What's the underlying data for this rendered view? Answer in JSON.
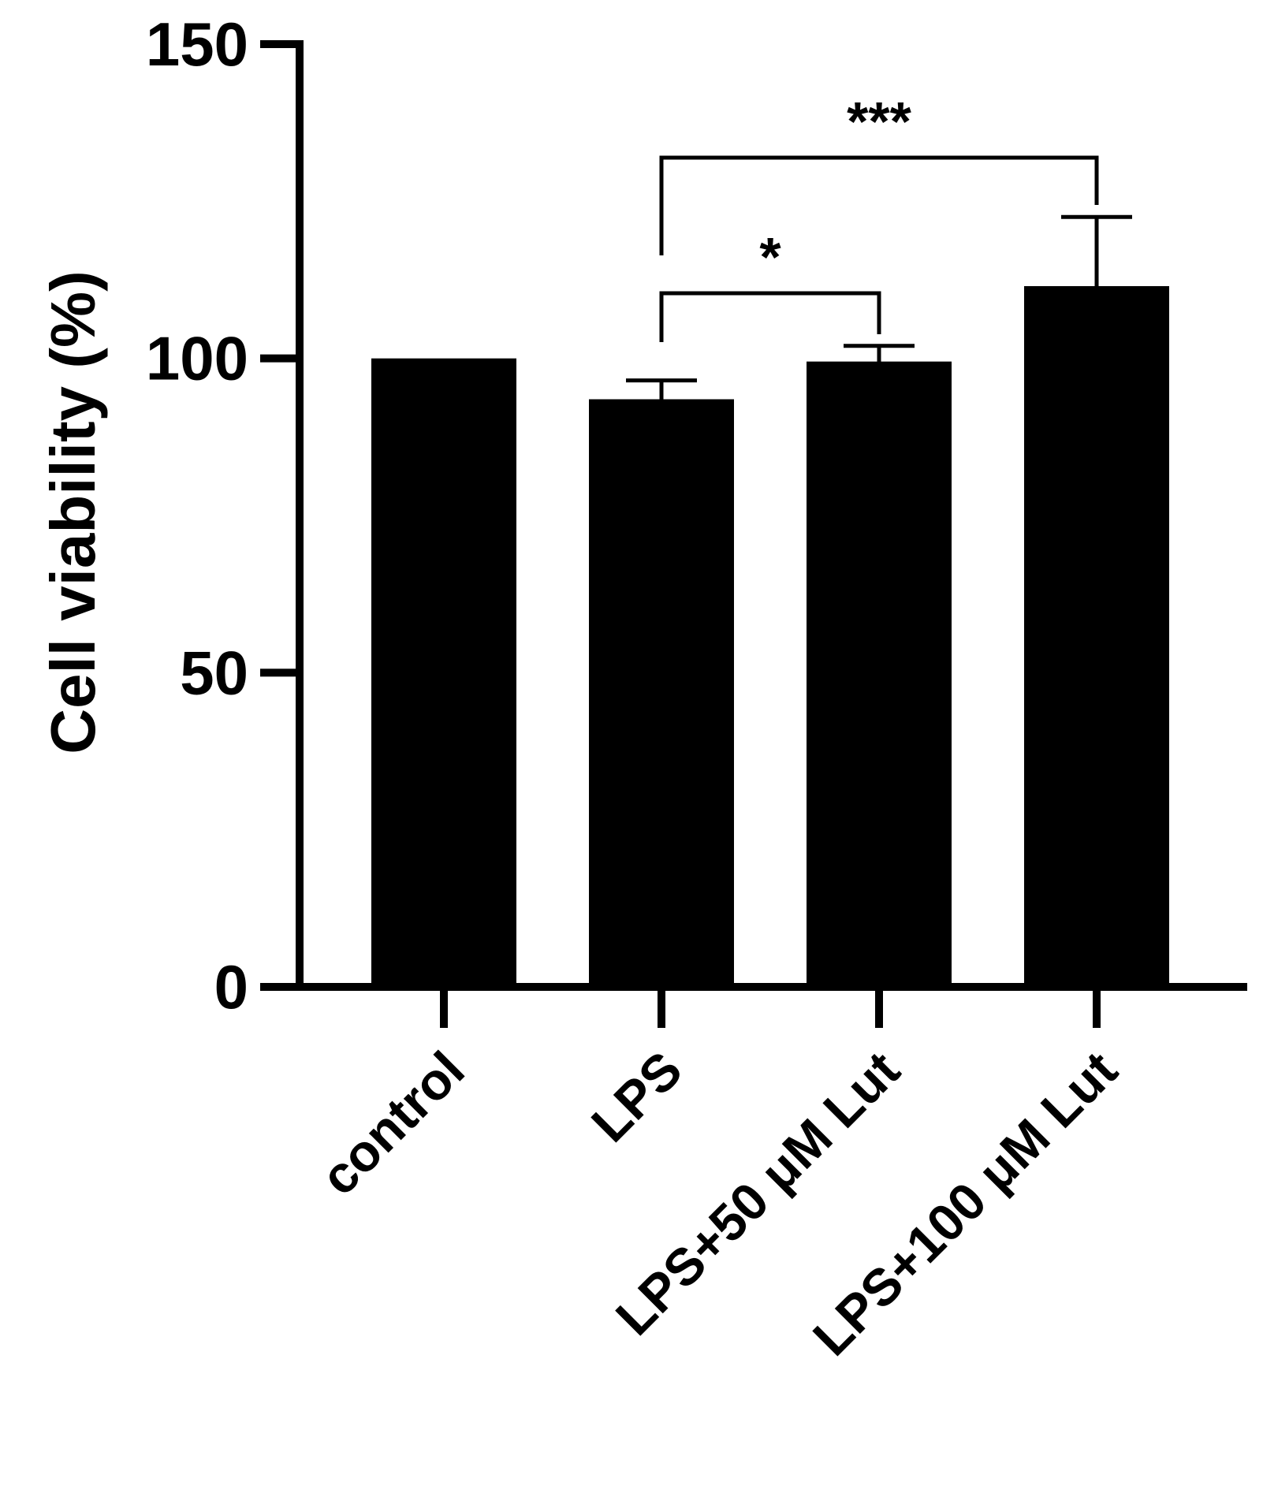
{
  "chart_data": {
    "type": "bar",
    "title": "",
    "xlabel": "",
    "ylabel": "Cell viability (%)",
    "ylim": [
      0,
      150
    ],
    "yticks": [
      0,
      50,
      100,
      150
    ],
    "grid": false,
    "legend": "none",
    "categories": [
      "control",
      "LPS",
      "LPS+50 μM Lut",
      "LPS+100 μM Lut"
    ],
    "values": [
      100,
      93.5,
      99.5,
      111.5
    ],
    "error_upper": [
      0,
      3,
      2.5,
      11
    ],
    "bar_color": "#000000",
    "significance": [
      {
        "from": 1,
        "to": 2,
        "label": "*"
      },
      {
        "from": 1,
        "to": 3,
        "label": "***"
      }
    ]
  }
}
